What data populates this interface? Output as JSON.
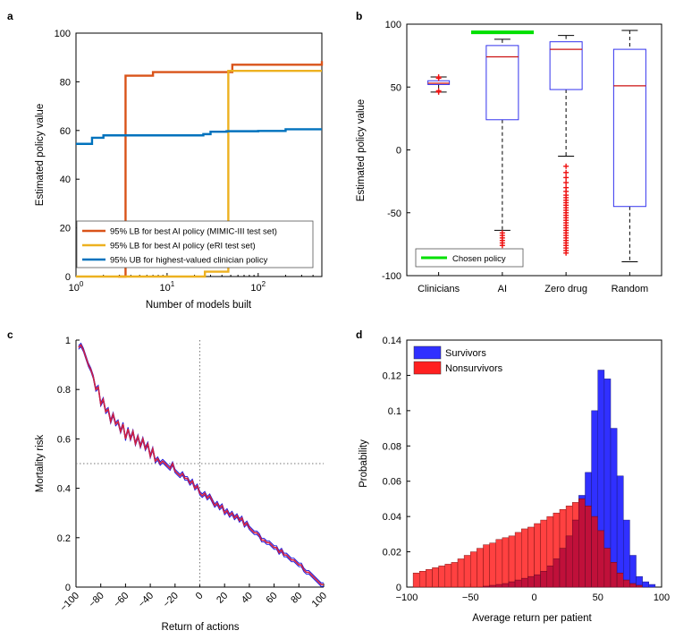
{
  "chart_data": [
    {
      "panel": "a",
      "type": "line",
      "xlabel": "Number of models built",
      "ylabel": "Estimated policy value",
      "xscale": "log",
      "xlim": [
        1,
        500
      ],
      "ylim": [
        0,
        100
      ],
      "xticks": [
        "10^0",
        "10^1",
        "10^2"
      ],
      "yticks": [
        0,
        20,
        40,
        60,
        80,
        100
      ],
      "legend_position": "bottom-right",
      "series": [
        {
          "name": "95% LB for best AI policy (MIMIC-III test set)",
          "color": "#d95319",
          "points": [
            [
              2.9,
              0
            ],
            [
              3.5,
              82.5
            ],
            [
              4.5,
              82.5
            ],
            [
              7,
              84
            ],
            [
              50,
              84
            ],
            [
              52,
              87
            ],
            [
              500,
              88.5
            ]
          ]
        },
        {
          "name": "95% LB for best AI policy (eRI test set)",
          "color": "#edb120",
          "points": [
            [
              1,
              0
            ],
            [
              24,
              0
            ],
            [
              26,
              2
            ],
            [
              45,
              2
            ],
            [
              47,
              84.5
            ],
            [
              500,
              84.5
            ]
          ]
        },
        {
          "name": "95% UB for highest-valued clinician policy",
          "color": "#0072bd",
          "points": [
            [
              1,
              54.5
            ],
            [
              1.5,
              57
            ],
            [
              2,
              58
            ],
            [
              5,
              58
            ],
            [
              25,
              58.5
            ],
            [
              30,
              59.5
            ],
            [
              45,
              59.7
            ],
            [
              100,
              59.8
            ],
            [
              200,
              60.5
            ],
            [
              500,
              60.5
            ]
          ]
        }
      ]
    },
    {
      "panel": "b",
      "type": "box",
      "xlabel": "",
      "ylabel": "Estimated policy value",
      "ylim": [
        -100,
        100
      ],
      "yticks": [
        -100,
        -50,
        0,
        50,
        100
      ],
      "categories": [
        "Clinicians",
        "AI",
        "Zero drug",
        "Random"
      ],
      "boxes": [
        {
          "whisker_low": 46,
          "q1": 52,
          "median": 53,
          "q3": 55,
          "whisker_high": 58,
          "outliers": [
            46,
            47,
            57,
            58
          ]
        },
        {
          "whisker_low": -64,
          "q1": 24,
          "median": 74,
          "q3": 83,
          "whisker_high": 88,
          "outliers": [
            -66,
            -68,
            -70,
            -72,
            -74,
            -76
          ]
        },
        {
          "whisker_low": -5,
          "q1": 48,
          "median": 80,
          "q3": 86,
          "whisker_high": 91,
          "outliers": [
            -13,
            -18,
            -22,
            -26,
            -30,
            -33,
            -36,
            -38,
            -40,
            -42,
            -44,
            -46,
            -48,
            -50,
            -52,
            -54,
            -56,
            -58,
            -60,
            -62,
            -64,
            -66,
            -68,
            -70,
            -72,
            -74,
            -76,
            -78,
            -80,
            -82
          ]
        },
        {
          "whisker_low": -89,
          "q1": -45,
          "median": 51,
          "q3": 80,
          "whisker_high": 95,
          "outliers": []
        }
      ],
      "chosen_policy": {
        "label": "Chosen policy",
        "value": 93.5,
        "color": "#00e000"
      }
    },
    {
      "panel": "c",
      "type": "line",
      "xlabel": "Return of actions",
      "ylabel": "Mortality risk",
      "xlim": [
        -100,
        100
      ],
      "ylim": [
        0,
        1
      ],
      "xticks": [
        -100,
        -80,
        -60,
        -40,
        -20,
        0,
        20,
        40,
        60,
        80,
        100
      ],
      "yticks": [
        0,
        0.2,
        0.4,
        0.6,
        0.8,
        1
      ],
      "reference_lines": {
        "x": 0,
        "y": 0.5
      },
      "series": [
        {
          "name": "",
          "color": "#1010e0",
          "x": [
            -98,
            -96,
            -94,
            -92,
            -90,
            -88,
            -86,
            -84,
            -82,
            -80,
            -78,
            -76,
            -74,
            -72,
            -70,
            -68,
            -66,
            -64,
            -62,
            -60,
            -58,
            -56,
            -54,
            -52,
            -50,
            -48,
            -46,
            -44,
            -42,
            -40,
            -38,
            -36,
            -34,
            -32,
            -30,
            -28,
            -26,
            -24,
            -22,
            -20,
            -18,
            -16,
            -14,
            -12,
            -10,
            -8,
            -6,
            -4,
            -2,
            0,
            2,
            4,
            6,
            8,
            10,
            12,
            14,
            16,
            18,
            20,
            22,
            24,
            26,
            28,
            30,
            32,
            34,
            36,
            38,
            40,
            42,
            44,
            46,
            48,
            50,
            52,
            54,
            56,
            58,
            60,
            62,
            64,
            66,
            68,
            70,
            72,
            74,
            76,
            78,
            80,
            82,
            84,
            86,
            88,
            90,
            92,
            94,
            96,
            98,
            100
          ],
          "y": [
            0.97,
            0.98,
            0.96,
            0.93,
            0.9,
            0.88,
            0.85,
            0.8,
            0.81,
            0.74,
            0.76,
            0.71,
            0.72,
            0.67,
            0.7,
            0.66,
            0.67,
            0.63,
            0.66,
            0.6,
            0.64,
            0.6,
            0.63,
            0.58,
            0.61,
            0.57,
            0.6,
            0.56,
            0.58,
            0.53,
            0.56,
            0.51,
            0.52,
            0.5,
            0.51,
            0.5,
            0.49,
            0.48,
            0.5,
            0.47,
            0.46,
            0.45,
            0.46,
            0.44,
            0.44,
            0.42,
            0.43,
            0.4,
            0.41,
            0.38,
            0.37,
            0.38,
            0.36,
            0.37,
            0.35,
            0.33,
            0.34,
            0.32,
            0.33,
            0.3,
            0.31,
            0.29,
            0.3,
            0.28,
            0.29,
            0.27,
            0.28,
            0.25,
            0.26,
            0.24,
            0.23,
            0.22,
            0.22,
            0.21,
            0.19,
            0.19,
            0.18,
            0.18,
            0.17,
            0.16,
            0.16,
            0.14,
            0.15,
            0.13,
            0.13,
            0.12,
            0.11,
            0.11,
            0.1,
            0.09,
            0.09,
            0.07,
            0.06,
            0.06,
            0.05,
            0.04,
            0.03,
            0.02,
            0.01,
            0.01
          ]
        }
      ]
    },
    {
      "panel": "d",
      "type": "histogram",
      "xlabel": "Average return per patient",
      "ylabel": "Probability",
      "xlim": [
        -100,
        100
      ],
      "ylim": [
        0,
        0.14
      ],
      "xticks": [
        -100,
        -50,
        0,
        50,
        100
      ],
      "yticks": [
        0,
        0.02,
        0.04,
        0.06,
        0.08,
        0.1,
        0.12,
        0.14
      ],
      "legend_position": "top-left",
      "bin_width": 5,
      "bin_start": -95,
      "series": [
        {
          "name": "Survivors",
          "color": "#3030ff",
          "values": [
            0,
            0,
            0,
            0,
            0,
            0,
            0,
            0,
            0,
            0,
            0,
            0.0005,
            0.001,
            0.0015,
            0.002,
            0.003,
            0.004,
            0.005,
            0.006,
            0.007,
            0.009,
            0.012,
            0.016,
            0.022,
            0.029,
            0.038,
            0.052,
            0.065,
            0.1,
            0.123,
            0.118,
            0.09,
            0.063,
            0.038,
            0.018,
            0.006,
            0.003,
            0.0015
          ]
        },
        {
          "name": "Nonsurvivors",
          "color": "#ff2020",
          "values": [
            0.008,
            0.009,
            0.01,
            0.011,
            0.012,
            0.013,
            0.014,
            0.016,
            0.018,
            0.02,
            0.022,
            0.024,
            0.025,
            0.027,
            0.028,
            0.029,
            0.031,
            0.033,
            0.034,
            0.036,
            0.038,
            0.04,
            0.042,
            0.044,
            0.046,
            0.048,
            0.05,
            0.046,
            0.04,
            0.032,
            0.022,
            0.014,
            0.008,
            0.004,
            0.002,
            0.001,
            0,
            0
          ]
        }
      ]
    }
  ]
}
